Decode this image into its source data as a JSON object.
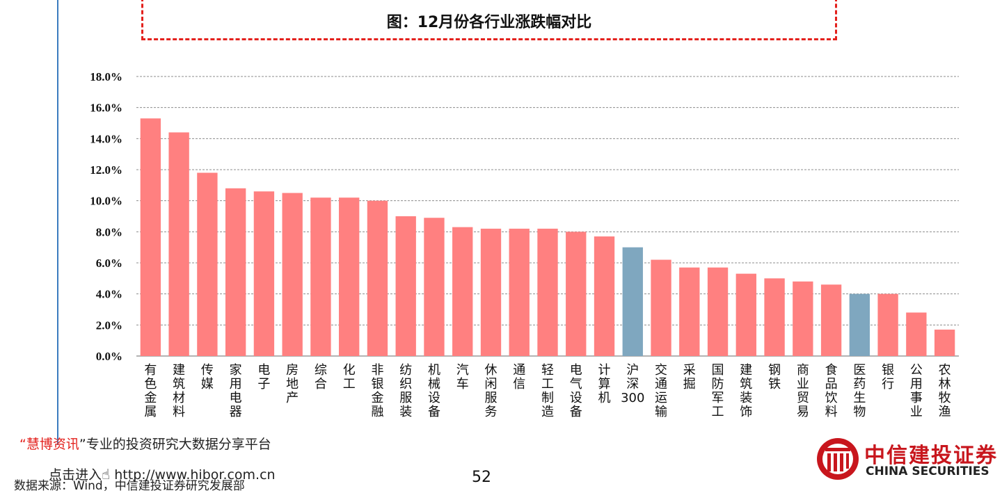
{
  "title": "图：12月份各行业涨跌幅对比",
  "promo": {
    "open_quote": "“",
    "brand": "慧博资讯",
    "close_quote": "”",
    "text": "专业的投资研究大数据分享平台"
  },
  "entry": {
    "label": "点击进入",
    "url": "http://www.hibor.com.cn"
  },
  "source": "数据来源：Wind，中信建投证券研究发展部",
  "page_number": "52",
  "logo": {
    "cn": "中信建投证券",
    "en": "CHINA SECURITIES",
    "icon": "citic-logo-icon"
  },
  "colors": {
    "bar": "#ff8080",
    "highlight": "#7fa7bf",
    "title_border": "#e3211d",
    "brand": "#c8161d"
  },
  "chart_data": {
    "type": "bar",
    "categories": [
      "有色金属",
      "建筑材料",
      "传媒",
      "家用电器",
      "电子",
      "房地产",
      "综合",
      "化工",
      "非银金融",
      "纺织服装",
      "机械设备",
      "汽车",
      "休闲服务",
      "通信",
      "轻工制造",
      "电气设备",
      "计算机",
      "沪深300",
      "交通运输",
      "采掘",
      "国防军工",
      "建筑装饰",
      "钢铁",
      "商业贸易",
      "食品饮料",
      "医药生物",
      "银行",
      "公用事业",
      "农林牧渔"
    ],
    "values": [
      15.3,
      14.4,
      11.8,
      10.8,
      10.6,
      10.5,
      10.2,
      10.2,
      10.0,
      9.0,
      8.9,
      8.3,
      8.2,
      8.2,
      8.2,
      8.0,
      7.7,
      7.0,
      6.2,
      5.7,
      5.7,
      5.3,
      5.0,
      4.8,
      4.6,
      4.0,
      4.0,
      2.8,
      1.7
    ],
    "highlight": [
      "沪深300",
      "医药生物"
    ],
    "yticks": [
      "0.0%",
      "2.0%",
      "4.0%",
      "6.0%",
      "8.0%",
      "10.0%",
      "12.0%",
      "14.0%",
      "16.0%",
      "18.0%"
    ],
    "ylim": [
      0,
      18
    ],
    "grid": true,
    "legend": "none"
  }
}
